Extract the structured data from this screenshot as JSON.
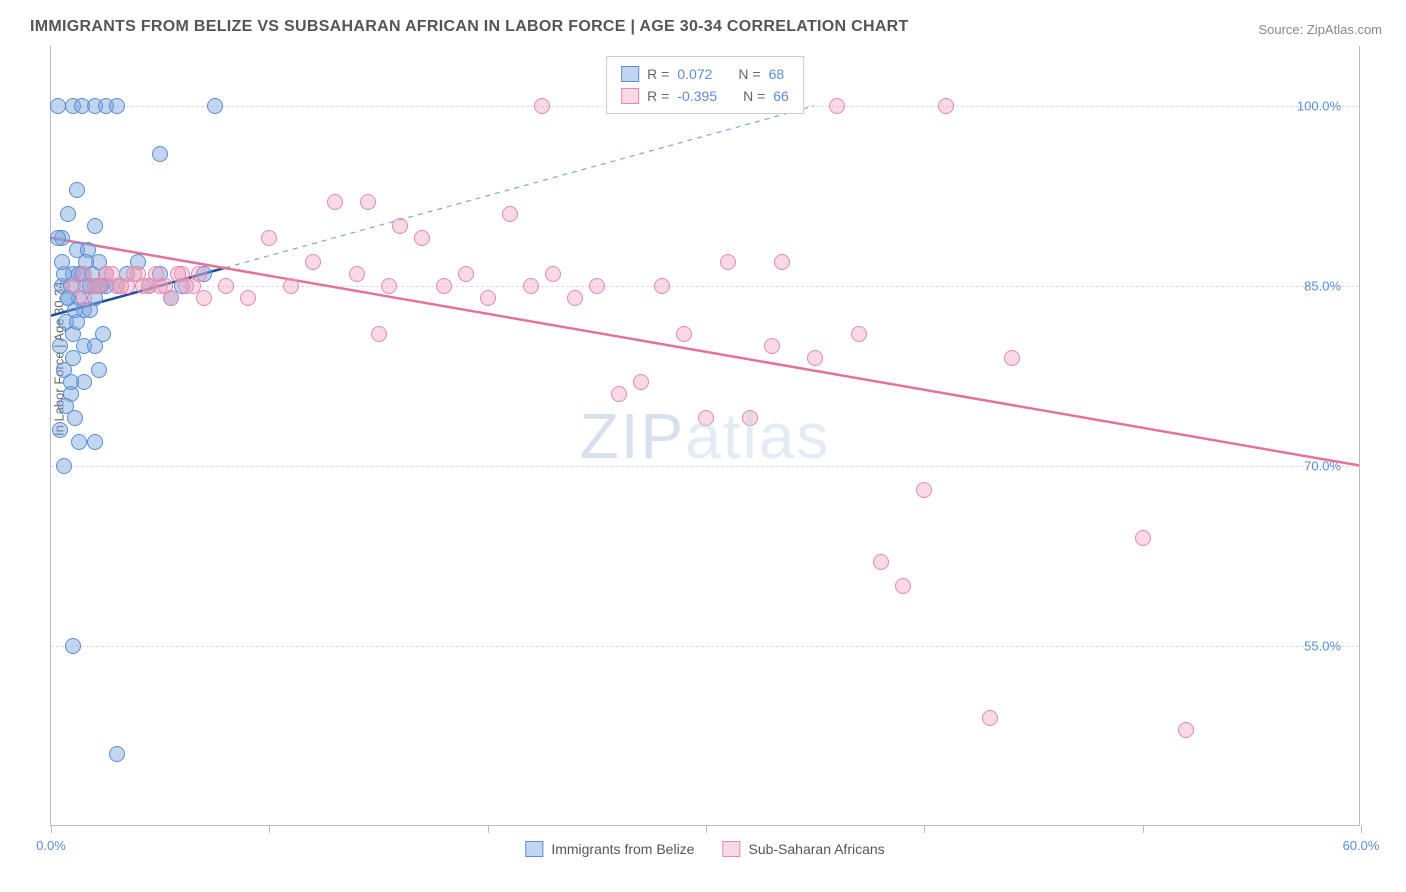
{
  "title": "IMMIGRANTS FROM BELIZE VS SUBSAHARAN AFRICAN IN LABOR FORCE | AGE 30-34 CORRELATION CHART",
  "source": "Source: ZipAtlas.com",
  "ylabel": "In Labor Force | Age 30-34",
  "watermark_bold": "ZIP",
  "watermark_thin": "atlas",
  "chart": {
    "type": "scatter",
    "xlim": [
      0,
      60
    ],
    "ylim": [
      40,
      105
    ],
    "x_ticks": [
      0,
      10,
      20,
      30,
      40,
      50,
      60
    ],
    "x_tick_labels": [
      "0.0%",
      "",
      "",
      "",
      "",
      "",
      "60.0%"
    ],
    "y_gridlines": [
      55,
      70,
      85,
      100
    ],
    "y_tick_labels": [
      "55.0%",
      "70.0%",
      "85.0%",
      "100.0%"
    ],
    "grid_color": "#dddddd",
    "axis_color": "#bbbbbb",
    "background_color": "#ffffff",
    "tick_label_color": "#5b8dd6",
    "tick_label_fontsize": 13
  },
  "series": [
    {
      "name": "Immigrants from Belize",
      "marker_fill": "rgba(120,165,220,0.45)",
      "marker_stroke": "#5b8dd6",
      "marker_radius": 8,
      "trend": {
        "x1": 0,
        "y1": 82.5,
        "x2": 8,
        "y2": 86.5,
        "color": "#1f4fa0",
        "width": 2.5,
        "dash": "none",
        "ext_x2": 35,
        "ext_y2": 100,
        "ext_dash": "5,5",
        "ext_color": "#7ea6dd",
        "ext_width": 1.2
      },
      "r_value": "0.072",
      "n_value": "68",
      "points": [
        [
          0.5,
          85
        ],
        [
          0.8,
          84
        ],
        [
          1.0,
          86
        ],
        [
          1.2,
          88
        ],
        [
          1.5,
          83
        ],
        [
          1.8,
          85
        ],
        [
          2.0,
          90
        ],
        [
          2.2,
          87
        ],
        [
          0.4,
          80
        ],
        [
          0.6,
          78
        ],
        [
          0.9,
          76
        ],
        [
          1.1,
          74
        ],
        [
          1.3,
          72
        ],
        [
          1.5,
          77
        ],
        [
          0.7,
          82
        ],
        [
          1.0,
          81
        ],
        [
          0.5,
          89
        ],
        [
          0.8,
          91
        ],
        [
          1.2,
          93
        ],
        [
          2.0,
          100
        ],
        [
          2.5,
          100
        ],
        [
          3.0,
          100
        ],
        [
          7.5,
          100
        ],
        [
          0.3,
          100
        ],
        [
          1.0,
          100
        ],
        [
          1.4,
          100
        ],
        [
          5.0,
          96
        ],
        [
          0.6,
          86
        ],
        [
          0.9,
          85
        ],
        [
          1.3,
          84
        ],
        [
          1.6,
          85
        ],
        [
          2.0,
          85
        ],
        [
          2.5,
          86
        ],
        [
          3.0,
          85
        ],
        [
          3.5,
          86
        ],
        [
          4.0,
          87
        ],
        [
          4.5,
          85
        ],
        [
          5.0,
          86
        ],
        [
          5.5,
          84
        ],
        [
          6.0,
          85
        ],
        [
          7.0,
          86
        ],
        [
          0.4,
          73
        ],
        [
          0.6,
          70
        ],
        [
          2.0,
          72
        ],
        [
          1.0,
          79
        ],
        [
          1.5,
          80
        ],
        [
          1.2,
          82
        ],
        [
          0.8,
          84
        ],
        [
          1.4,
          86
        ],
        [
          1.7,
          88
        ],
        [
          2.0,
          84
        ],
        [
          2.3,
          85
        ],
        [
          0.5,
          87
        ],
        [
          0.3,
          89
        ],
        [
          1.0,
          55
        ],
        [
          3.0,
          46
        ],
        [
          0.7,
          75
        ],
        [
          0.9,
          77
        ],
        [
          1.1,
          83
        ],
        [
          1.3,
          86
        ],
        [
          1.6,
          87
        ],
        [
          1.9,
          86
        ],
        [
          2.2,
          85
        ],
        [
          2.5,
          85
        ],
        [
          1.8,
          83
        ],
        [
          2.0,
          80
        ],
        [
          2.2,
          78
        ],
        [
          2.4,
          81
        ]
      ]
    },
    {
      "name": "Sub-Saharan Africans",
      "marker_fill": "rgba(240,160,190,0.4)",
      "marker_stroke": "#e68aaa",
      "marker_radius": 8,
      "trend": {
        "x1": 0,
        "y1": 89,
        "x2": 60,
        "y2": 70,
        "color": "#e57399",
        "width": 2.5,
        "dash": "none"
      },
      "r_value": "-0.395",
      "n_value": "66",
      "points": [
        [
          1.0,
          85
        ],
        [
          1.5,
          86
        ],
        [
          2.0,
          85
        ],
        [
          2.5,
          86
        ],
        [
          3.0,
          85
        ],
        [
          3.5,
          85
        ],
        [
          4.0,
          86
        ],
        [
          4.5,
          85
        ],
        [
          5.0,
          85
        ],
        [
          5.5,
          84
        ],
        [
          6.0,
          86
        ],
        [
          6.5,
          85
        ],
        [
          7.0,
          84
        ],
        [
          8.0,
          85
        ],
        [
          9.0,
          84
        ],
        [
          10.0,
          89
        ],
        [
          11.0,
          85
        ],
        [
          12.0,
          87
        ],
        [
          13.0,
          92
        ],
        [
          14.0,
          86
        ],
        [
          14.5,
          92
        ],
        [
          15.0,
          81
        ],
        [
          15.5,
          85
        ],
        [
          16.0,
          90
        ],
        [
          17.0,
          89
        ],
        [
          18.0,
          85
        ],
        [
          19.0,
          86
        ],
        [
          20.0,
          84
        ],
        [
          21.0,
          91
        ],
        [
          22.0,
          85
        ],
        [
          22.5,
          100
        ],
        [
          23.0,
          86
        ],
        [
          24.0,
          84
        ],
        [
          25.0,
          85
        ],
        [
          26.0,
          76
        ],
        [
          27.0,
          77
        ],
        [
          28.0,
          85
        ],
        [
          29.0,
          81
        ],
        [
          30.0,
          74
        ],
        [
          31.0,
          87
        ],
        [
          32.0,
          74
        ],
        [
          33.0,
          80
        ],
        [
          34.0,
          100
        ],
        [
          36.0,
          100
        ],
        [
          33.5,
          87
        ],
        [
          35.0,
          79
        ],
        [
          37.0,
          81
        ],
        [
          38.0,
          62
        ],
        [
          39.0,
          60
        ],
        [
          41.0,
          100
        ],
        [
          40.0,
          68
        ],
        [
          43.0,
          49
        ],
        [
          44.0,
          79
        ],
        [
          50.0,
          64
        ],
        [
          52.0,
          48
        ],
        [
          1.5,
          84
        ],
        [
          2.2,
          85
        ],
        [
          2.8,
          86
        ],
        [
          3.2,
          85
        ],
        [
          3.8,
          86
        ],
        [
          4.2,
          85
        ],
        [
          4.8,
          86
        ],
        [
          5.2,
          85
        ],
        [
          5.8,
          86
        ],
        [
          6.2,
          85
        ],
        [
          6.8,
          86
        ]
      ]
    }
  ],
  "legend_correl": {
    "r_label": "R =",
    "n_label": "N ="
  },
  "legend_bottom": [
    {
      "label": "Immigrants from Belize",
      "fill": "rgba(120,165,220,0.45)",
      "stroke": "#5b8dd6"
    },
    {
      "label": "Sub-Saharan Africans",
      "fill": "rgba(240,160,190,0.4)",
      "stroke": "#e68aaa"
    }
  ]
}
